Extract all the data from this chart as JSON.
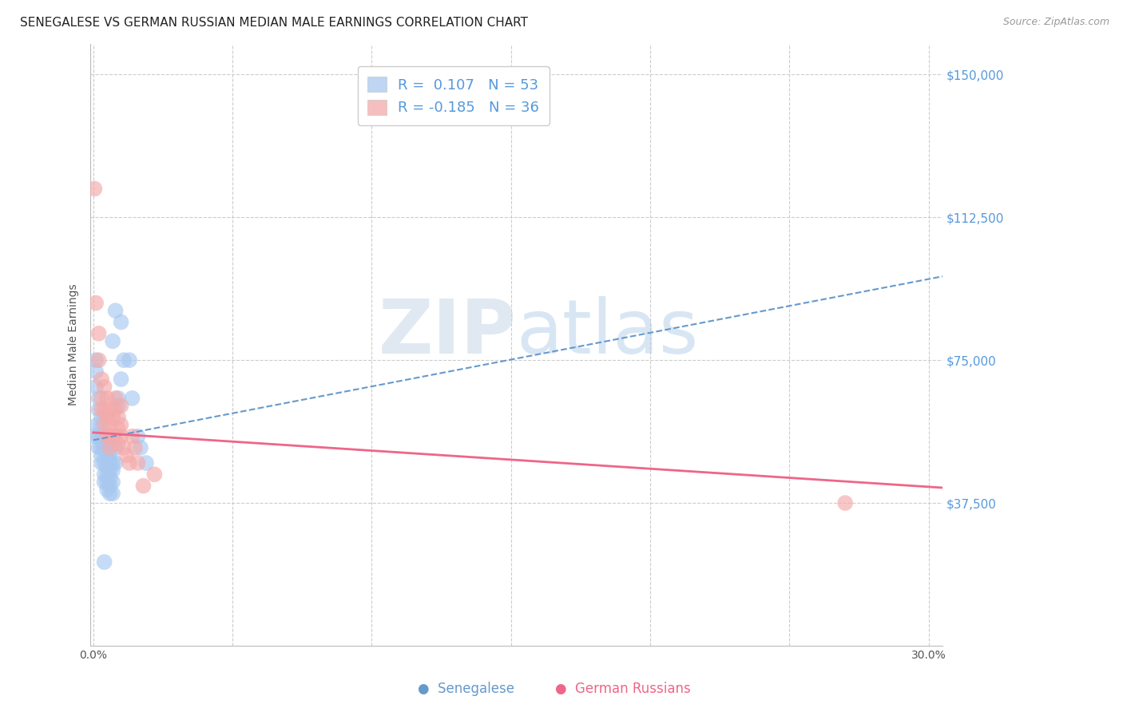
{
  "title": "SENEGALESE VS GERMAN RUSSIAN MEDIAN MALE EARNINGS CORRELATION CHART",
  "source": "Source: ZipAtlas.com",
  "ylabel": "Median Male Earnings",
  "xlim": [
    -0.001,
    0.305
  ],
  "ylim": [
    0,
    158000
  ],
  "ytick_positions": [
    37500,
    75000,
    112500,
    150000
  ],
  "ytick_labels": [
    "$37,500",
    "$75,000",
    "$112,500",
    "$150,000"
  ],
  "blue_color": "#A8C8F0",
  "pink_color": "#F4AAAA",
  "blue_trend_color": "#6699CC",
  "pink_trend_color": "#EE6688",
  "blue_R": "0.107",
  "blue_N": "53",
  "pink_R": "-0.185",
  "pink_N": "36",
  "blue_label": "Senegalese",
  "pink_label": "German Russians",
  "background_color": "#FFFFFF",
  "grid_color": "#CCCCCC",
  "title_fontsize": 11,
  "blue_trend_x": [
    0.0,
    0.305
  ],
  "blue_trend_y": [
    54000,
    97000
  ],
  "pink_trend_x": [
    0.0,
    0.305
  ],
  "pink_trend_y": [
    56000,
    41500
  ],
  "blue_points_x": [
    0.0005,
    0.001,
    0.001,
    0.001,
    0.0015,
    0.002,
    0.002,
    0.002,
    0.002,
    0.003,
    0.003,
    0.003,
    0.003,
    0.003,
    0.003,
    0.0035,
    0.004,
    0.004,
    0.004,
    0.004,
    0.004,
    0.005,
    0.005,
    0.005,
    0.005,
    0.005,
    0.005,
    0.006,
    0.006,
    0.006,
    0.006,
    0.006,
    0.006,
    0.007,
    0.007,
    0.007,
    0.007,
    0.008,
    0.008,
    0.008,
    0.009,
    0.009,
    0.01,
    0.01,
    0.011,
    0.013,
    0.014,
    0.016,
    0.017,
    0.019,
    0.007,
    0.008,
    0.004
  ],
  "blue_points_y": [
    55000,
    75000,
    72000,
    68000,
    58000,
    65000,
    62000,
    55000,
    52000,
    60000,
    58000,
    55000,
    52000,
    50000,
    48000,
    53000,
    55000,
    52000,
    48000,
    45000,
    43000,
    53000,
    50000,
    47000,
    45000,
    43000,
    41000,
    50000,
    48000,
    46000,
    44000,
    42000,
    40000,
    48000,
    46000,
    43000,
    40000,
    55000,
    52000,
    48000,
    65000,
    63000,
    70000,
    85000,
    75000,
    75000,
    65000,
    55000,
    52000,
    48000,
    80000,
    88000,
    22000
  ],
  "pink_points_x": [
    0.0005,
    0.001,
    0.002,
    0.002,
    0.003,
    0.003,
    0.003,
    0.004,
    0.004,
    0.004,
    0.005,
    0.005,
    0.005,
    0.006,
    0.006,
    0.006,
    0.006,
    0.007,
    0.007,
    0.008,
    0.008,
    0.009,
    0.009,
    0.009,
    0.01,
    0.01,
    0.01,
    0.011,
    0.012,
    0.013,
    0.014,
    0.015,
    0.016,
    0.018,
    0.27,
    0.022
  ],
  "pink_points_y": [
    120000,
    90000,
    82000,
    75000,
    70000,
    65000,
    62000,
    68000,
    62000,
    58000,
    65000,
    60000,
    55000,
    62000,
    58000,
    55000,
    52000,
    60000,
    55000,
    65000,
    62000,
    60000,
    57000,
    53000,
    63000,
    58000,
    55000,
    52000,
    50000,
    48000,
    55000,
    52000,
    48000,
    42000,
    37500,
    45000
  ]
}
